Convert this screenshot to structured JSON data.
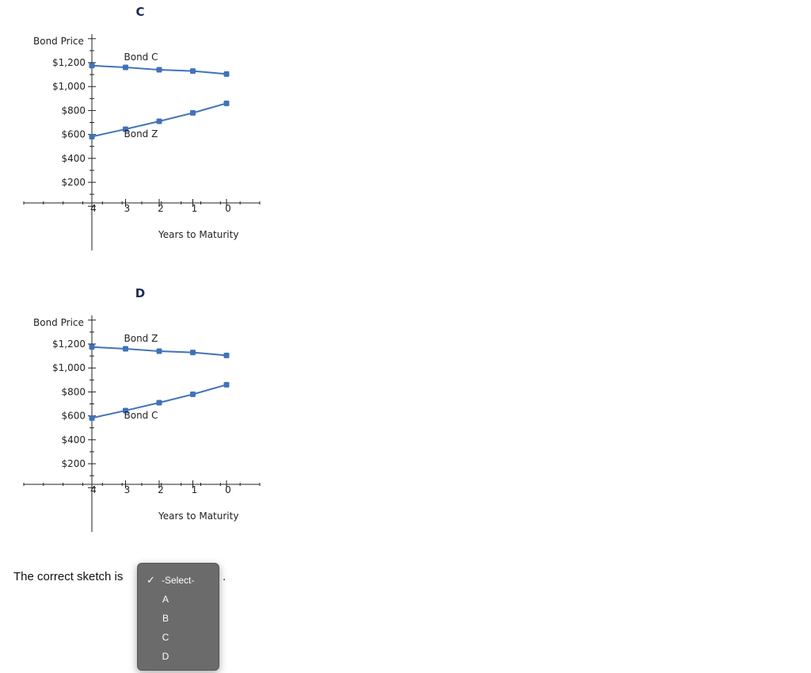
{
  "question": {
    "text": "The correct sketch is",
    "end_punct": ".",
    "select": {
      "options": [
        "-Select-",
        "A",
        "B",
        "C",
        "D"
      ],
      "selected": "-Select-"
    }
  },
  "chart_data": [
    {
      "type": "line",
      "title": "C",
      "ylabel": "Bond Price",
      "xlabel": "Years to Maturity",
      "x_ticks": [
        "4",
        "3",
        "2",
        "1",
        "0"
      ],
      "y_ticks": [
        "$200",
        "$400",
        "$600",
        "$800",
        "$1,000",
        "$1,200"
      ],
      "x": [
        4,
        3,
        2,
        1,
        0
      ],
      "series": [
        {
          "name": "Bond C",
          "values": [
            1175,
            1160,
            1140,
            1130,
            1105
          ]
        },
        {
          "name": "Bond Z",
          "values": [
            582,
            644,
            710,
            780,
            860
          ]
        }
      ],
      "grid": false,
      "color": "#3f73b8"
    },
    {
      "type": "line",
      "title": "D",
      "ylabel": "Bond Price",
      "xlabel": "Years to Maturity",
      "x_ticks": [
        "4",
        "3",
        "2",
        "1",
        "0"
      ],
      "y_ticks": [
        "$200",
        "$400",
        "$600",
        "$800",
        "$1,000",
        "$1,200"
      ],
      "x": [
        4,
        3,
        2,
        1,
        0
      ],
      "series": [
        {
          "name": "Bond Z",
          "values": [
            1175,
            1160,
            1140,
            1130,
            1105
          ]
        },
        {
          "name": "Bond C",
          "values": [
            582,
            644,
            710,
            780,
            860
          ]
        }
      ],
      "grid": false,
      "color": "#3f73b8"
    }
  ]
}
